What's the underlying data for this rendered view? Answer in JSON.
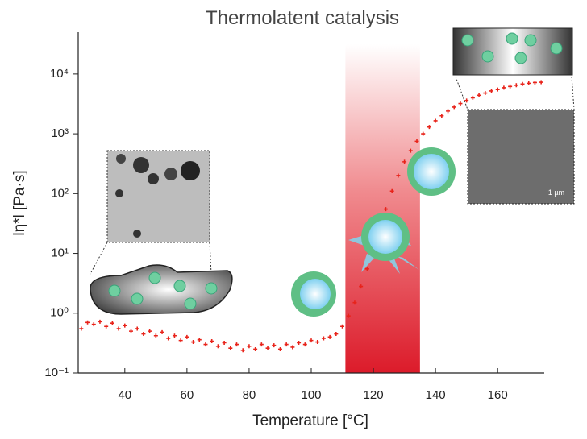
{
  "chart_data": {
    "type": "scatter",
    "title": "Thermolatent catalysis",
    "x_label": "Temperature [°C]",
    "y_label": "lη*l [Pa·s]",
    "color": "#e8231a",
    "log_y": true,
    "highlight_range": [
      111,
      135
    ],
    "annotations": [
      "1 µm"
    ],
    "xlim": [
      25,
      175
    ],
    "xticks": [
      40,
      60,
      80,
      100,
      120,
      140,
      160
    ],
    "ylim": [
      0.1,
      50000
    ],
    "yticks": [
      {
        "value": 0.1,
        "label": "10⁻¹"
      },
      {
        "value": 1,
        "label": "10⁰"
      },
      {
        "value": 10,
        "label": "10¹"
      },
      {
        "value": 100,
        "label": "10²"
      },
      {
        "value": 1000,
        "label": "10³"
      },
      {
        "value": 10000,
        "label": "10⁴"
      }
    ],
    "x": [
      26,
      28,
      30,
      32,
      34,
      36,
      38,
      40,
      42,
      44,
      46,
      48,
      50,
      52,
      54,
      56,
      58,
      60,
      62,
      64,
      66,
      68,
      70,
      72,
      74,
      76,
      78,
      80,
      82,
      84,
      86,
      88,
      90,
      92,
      94,
      96,
      98,
      100,
      102,
      104,
      106,
      108,
      110,
      112,
      114,
      116,
      118,
      120,
      122,
      124,
      126,
      128,
      130,
      132,
      134,
      136,
      138,
      140,
      142,
      144,
      146,
      148,
      150,
      152,
      154,
      156,
      158,
      160,
      162,
      164,
      166,
      168,
      170,
      172,
      174
    ],
    "values": [
      0.55,
      0.7,
      0.65,
      0.72,
      0.6,
      0.68,
      0.55,
      0.62,
      0.5,
      0.55,
      0.45,
      0.5,
      0.42,
      0.48,
      0.38,
      0.42,
      0.35,
      0.4,
      0.33,
      0.36,
      0.3,
      0.34,
      0.28,
      0.32,
      0.26,
      0.3,
      0.24,
      0.28,
      0.25,
      0.3,
      0.26,
      0.29,
      0.25,
      0.3,
      0.27,
      0.32,
      0.3,
      0.35,
      0.33,
      0.38,
      0.4,
      0.45,
      0.6,
      0.9,
      1.5,
      2.8,
      5.5,
      11,
      24,
      55,
      110,
      200,
      340,
      520,
      750,
      1000,
      1300,
      1650,
      2000,
      2400,
      2800,
      3200,
      3600,
      4000,
      4400,
      4800,
      5200,
      5500,
      5900,
      6200,
      6500,
      6800,
      7000,
      7200,
      7300
    ]
  }
}
